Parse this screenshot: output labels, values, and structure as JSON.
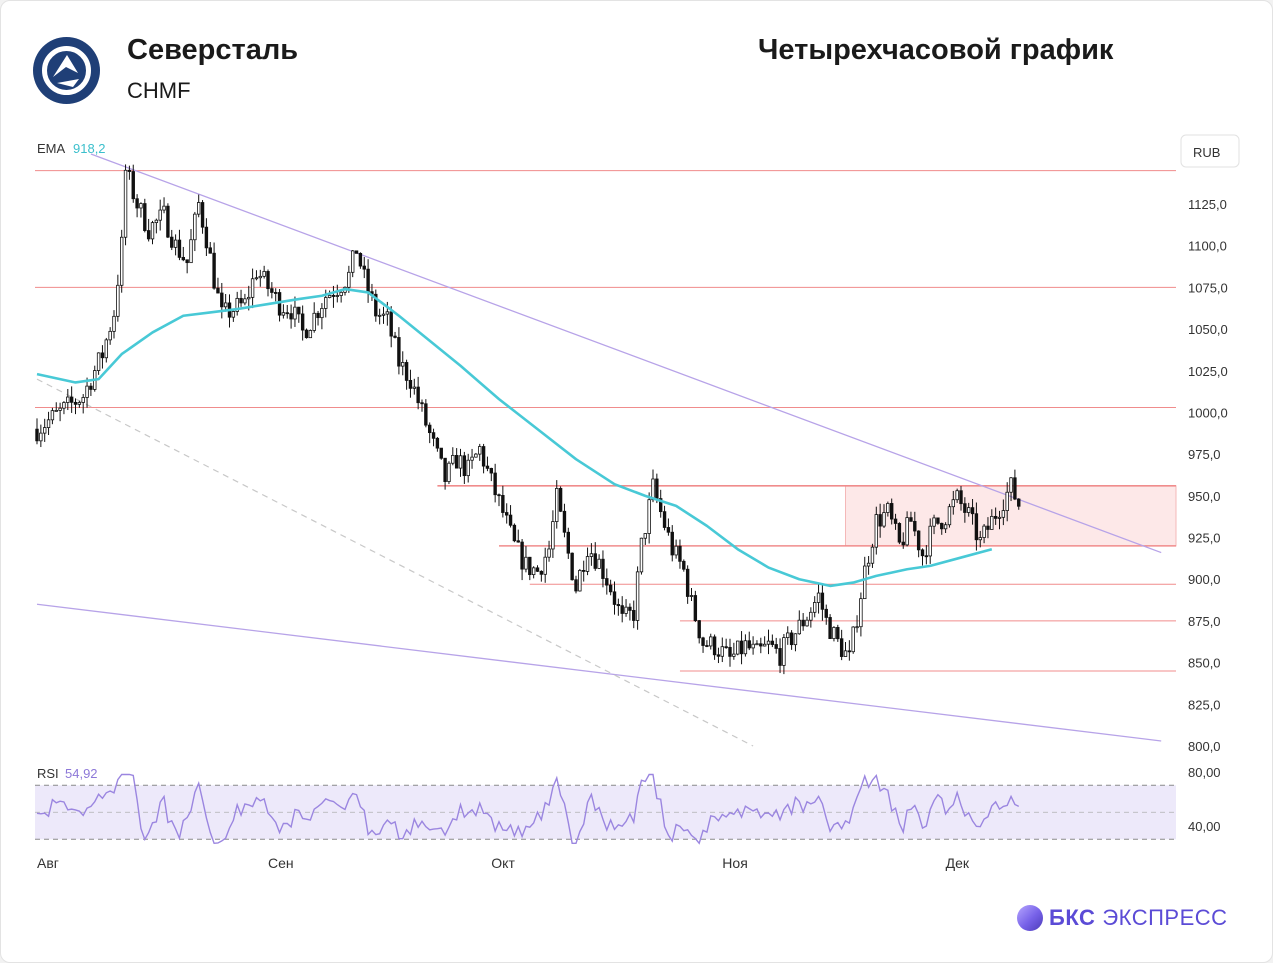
{
  "header": {
    "company": "Северсталь",
    "ticker": "CHMF",
    "timeframe": "Четырехчасовой график"
  },
  "brand": {
    "bold": "БКС",
    "light": "ЭКСПРЕСС"
  },
  "colors": {
    "ema": "#48c9d6",
    "trendline": "#b7a3e8",
    "level": "#f08c8c",
    "zone": "#fde8e8",
    "rsi_band": "#ede9fa",
    "rsi_line": "#9b86e0",
    "candle": "#111111"
  },
  "chart_data": {
    "type": "candlestick",
    "currency": "RUB",
    "ema_label": "EMA",
    "ema_value": "918,2",
    "y_ticks": [
      "1125,0",
      "1100,0",
      "1075,0",
      "1050,0",
      "1025,0",
      "1000,0",
      "975,0",
      "950,0",
      "925,0",
      "900,0",
      "875,0",
      "850,0",
      "825,0",
      "800,0"
    ],
    "ylim": [
      797,
      1152
    ],
    "x_labels": [
      "Авг",
      "Сен",
      "Окт",
      "Ноя",
      "Дек"
    ],
    "x_label_index": [
      0,
      60,
      118,
      178,
      236
    ],
    "rsi_label": "RSI",
    "rsi_value": "54,92",
    "rsi_ticks": [
      "80,00",
      "40,00"
    ],
    "rsi_levels": [
      70,
      30
    ],
    "rsi_range": [
      25,
      88
    ],
    "levels": [
      {
        "price": 1145,
        "from": 0
      },
      {
        "price": 1075,
        "from": 0
      },
      {
        "price": 1003,
        "from": 0
      },
      {
        "price": 956,
        "from": 104
      },
      {
        "price": 920,
        "from": 120
      },
      {
        "price": 897,
        "from": 128
      },
      {
        "price": 875,
        "from": 167
      },
      {
        "price": 845,
        "from": 167
      }
    ],
    "zone": {
      "from_index": 210,
      "top": 956,
      "bottom": 920
    },
    "trendlines": [
      {
        "x1": 14,
        "y1": 1155,
        "x2": 292,
        "y2": 916
      },
      {
        "x1": 0,
        "y1": 885,
        "x2": 292,
        "y2": 803
      }
    ],
    "dashed_line": {
      "x1": 0,
      "y1": 1020,
      "x2": 186,
      "y2": 800
    },
    "anchors": [
      [
        0,
        990
      ],
      [
        6,
        1000
      ],
      [
        12,
        1010
      ],
      [
        17,
        1035
      ],
      [
        20,
        1060
      ],
      [
        22,
        1100
      ],
      [
        23,
        1145
      ],
      [
        26,
        1125
      ],
      [
        29,
        1110
      ],
      [
        33,
        1118
      ],
      [
        36,
        1100
      ],
      [
        39,
        1090
      ],
      [
        42,
        1125
      ],
      [
        44,
        1105
      ],
      [
        46,
        1080
      ],
      [
        48,
        1058
      ],
      [
        51,
        1062
      ],
      [
        54,
        1065
      ],
      [
        57,
        1085
      ],
      [
        60,
        1075
      ],
      [
        63,
        1065
      ],
      [
        66,
        1062
      ],
      [
        69,
        1048
      ],
      [
        72,
        1058
      ],
      [
        75,
        1070
      ],
      [
        78,
        1075
      ],
      [
        81,
        1082
      ],
      [
        83,
        1098
      ],
      [
        85,
        1080
      ],
      [
        88,
        1060
      ],
      [
        91,
        1055
      ],
      [
        94,
        1030
      ],
      [
        97,
        1020
      ],
      [
        100,
        1000
      ],
      [
        103,
        980
      ],
      [
        106,
        960
      ],
      [
        109,
        972
      ],
      [
        112,
        965
      ],
      [
        115,
        978
      ],
      [
        118,
        958
      ],
      [
        121,
        940
      ],
      [
        124,
        920
      ],
      [
        127,
        908
      ],
      [
        130,
        905
      ],
      [
        133,
        918
      ],
      [
        135,
        948
      ],
      [
        137,
        925
      ],
      [
        140,
        895
      ],
      [
        143,
        920
      ],
      [
        146,
        910
      ],
      [
        149,
        895
      ],
      [
        152,
        875
      ],
      [
        155,
        880
      ],
      [
        157,
        920
      ],
      [
        160,
        955
      ],
      [
        162,
        940
      ],
      [
        165,
        918
      ],
      [
        168,
        905
      ],
      [
        170,
        885
      ],
      [
        173,
        862
      ],
      [
        176,
        860
      ],
      [
        180,
        852
      ],
      [
        184,
        860
      ],
      [
        187,
        855
      ],
      [
        190,
        860
      ],
      [
        193,
        855
      ],
      [
        196,
        865
      ],
      [
        200,
        878
      ],
      [
        203,
        890
      ],
      [
        205,
        875
      ],
      [
        208,
        862
      ],
      [
        211,
        852
      ],
      [
        213,
        878
      ],
      [
        215,
        905
      ],
      [
        218,
        935
      ],
      [
        221,
        940
      ],
      [
        224,
        920
      ],
      [
        227,
        935
      ],
      [
        230,
        915
      ],
      [
        233,
        932
      ],
      [
        236,
        938
      ],
      [
        239,
        948
      ],
      [
        242,
        938
      ],
      [
        245,
        922
      ],
      [
        248,
        935
      ],
      [
        251,
        948
      ],
      [
        253,
        955
      ],
      [
        255,
        945
      ]
    ],
    "ema_points": [
      [
        0,
        1023
      ],
      [
        10,
        1018
      ],
      [
        16,
        1020
      ],
      [
        22,
        1035
      ],
      [
        30,
        1048
      ],
      [
        38,
        1058
      ],
      [
        45,
        1060
      ],
      [
        52,
        1062
      ],
      [
        60,
        1065
      ],
      [
        68,
        1068
      ],
      [
        74,
        1070
      ],
      [
        80,
        1074
      ],
      [
        86,
        1072
      ],
      [
        94,
        1058
      ],
      [
        102,
        1043
      ],
      [
        110,
        1028
      ],
      [
        120,
        1008
      ],
      [
        130,
        990
      ],
      [
        140,
        972
      ],
      [
        150,
        957
      ],
      [
        158,
        950
      ],
      [
        166,
        944
      ],
      [
        174,
        932
      ],
      [
        182,
        918
      ],
      [
        190,
        907
      ],
      [
        198,
        900
      ],
      [
        206,
        896
      ],
      [
        212,
        898
      ],
      [
        218,
        902
      ],
      [
        226,
        906
      ],
      [
        232,
        908
      ],
      [
        240,
        913
      ],
      [
        248,
        918
      ]
    ]
  }
}
